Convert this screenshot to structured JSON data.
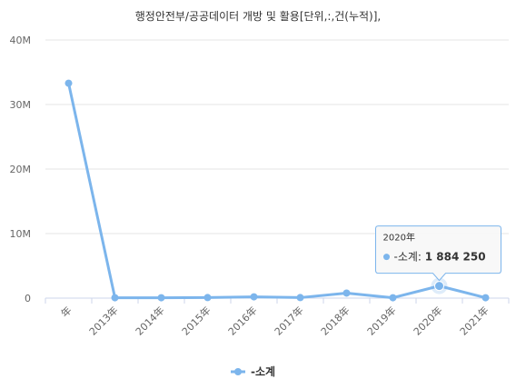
{
  "chart_data": {
    "type": "line",
    "title": "행정안전부/공공데이터 개방 및 활용[단위,:,건(누적)],",
    "categories": [
      "年",
      "2013年",
      "2014年",
      "2015年",
      "2016年",
      "2017年",
      "2018年",
      "2019年",
      "2020年",
      "2021年"
    ],
    "series": [
      {
        "name": "-소계",
        "color": "#7cb5ec",
        "values": [
          33300000,
          60000,
          60000,
          80000,
          200000,
          80000,
          780000,
          60000,
          1884250,
          60000
        ]
      }
    ],
    "ylim": [
      0,
      40000000
    ],
    "yticks": [
      {
        "value": 0,
        "label": "0"
      },
      {
        "value": 10000000,
        "label": "10M"
      },
      {
        "value": 20000000,
        "label": "20M"
      },
      {
        "value": 30000000,
        "label": "30M"
      },
      {
        "value": 40000000,
        "label": "40M"
      }
    ],
    "grid": true,
    "legend": "bottom-center",
    "tooltip": {
      "category_index": 8,
      "header": "2020年",
      "series_label": "-소계: ",
      "value_text": "1 884 250"
    }
  }
}
